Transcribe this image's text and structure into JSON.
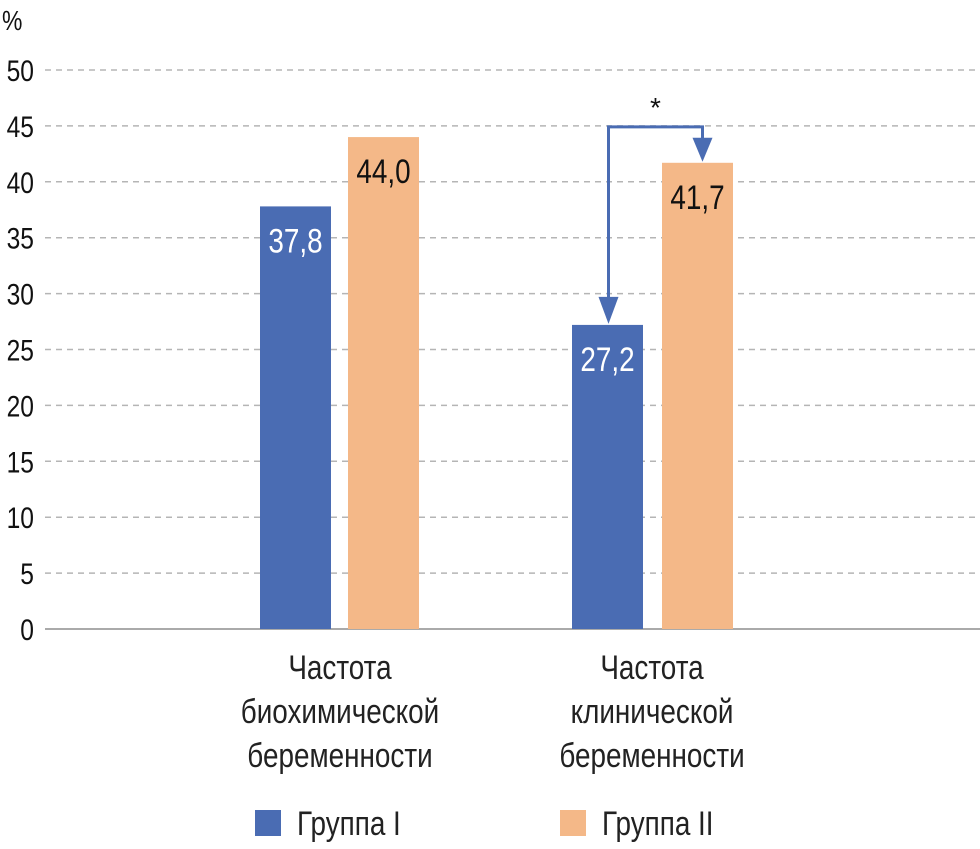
{
  "chart_data": {
    "type": "bar",
    "ylabel": "%",
    "ylim": [
      0,
      50
    ],
    "yticks": [
      "0",
      "5",
      "10",
      "15",
      "20",
      "25",
      "30",
      "35",
      "40",
      "45",
      "50"
    ],
    "grid": true,
    "categories": [
      [
        "Частота",
        "биохимической",
        "беременности"
      ],
      [
        "Частота",
        "клинической",
        "беременности"
      ]
    ],
    "series": [
      {
        "name": "Группа I",
        "color": "#4a6cb3",
        "label_color": "#ffffff",
        "values": [
          37.8,
          27.2
        ],
        "labels": [
          "37,8",
          "27,2"
        ]
      },
      {
        "name": "Группа II",
        "color": "#f4b888",
        "label_color": "#111111",
        "values": [
          44.0,
          41.7
        ],
        "labels": [
          "44,0",
          "41,7"
        ]
      }
    ],
    "annotation": {
      "text": "*",
      "category": 1,
      "from_series": 0,
      "to_series": 1,
      "level": 45,
      "color": "#4a6cb3"
    },
    "legend": "bottom"
  }
}
